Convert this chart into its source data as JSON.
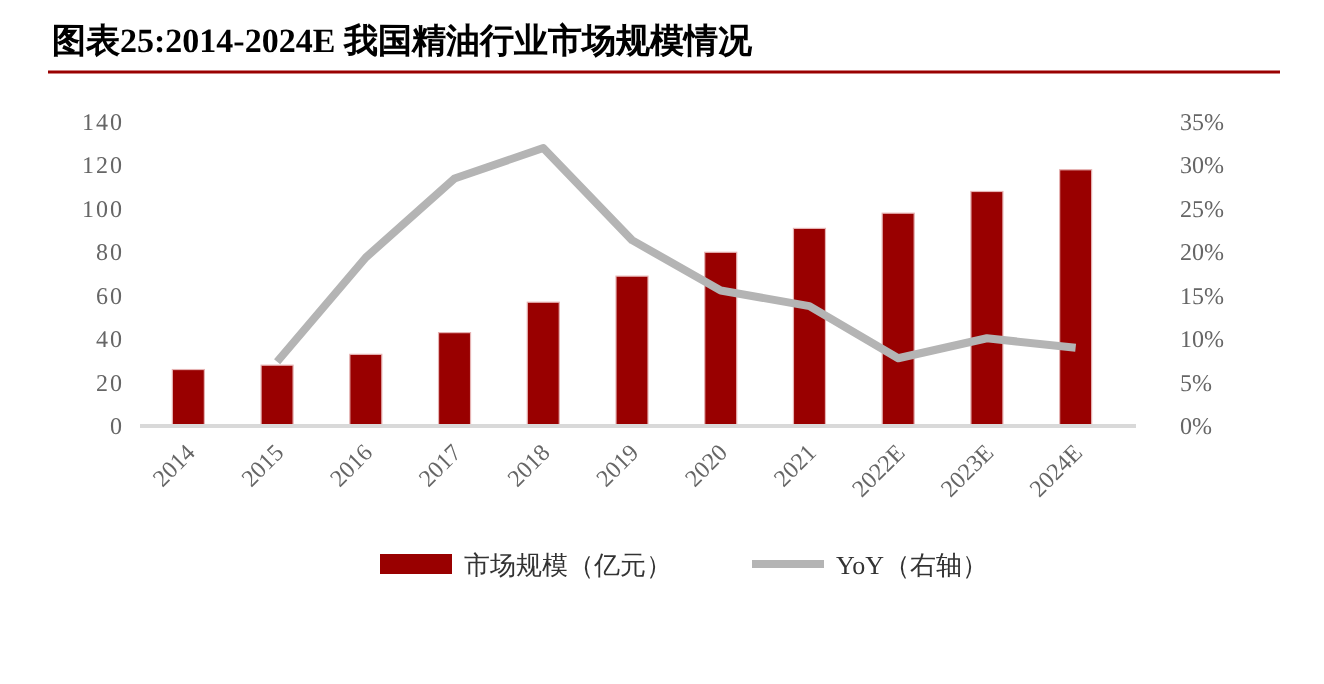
{
  "chart_data": {
    "type": "bar",
    "title": "图表25:2014-2024E 我国精油行业市场规模情况",
    "categories": [
      "2014",
      "2015",
      "2016",
      "2017",
      "2018",
      "2019",
      "2020",
      "2021",
      "2022E",
      "2023E",
      "2024E"
    ],
    "series": [
      {
        "name": "市场规模（亿元）",
        "color": "#990000",
        "values": [
          26,
          28,
          33,
          43,
          57,
          69,
          80,
          91,
          98,
          108,
          118
        ]
      },
      {
        "name": "YoY（右轴）",
        "type": "line",
        "axis": "y2",
        "color": "#b4b4b4",
        "values": [
          null,
          7.4,
          19.4,
          28.5,
          32,
          21.4,
          15.6,
          13.8,
          7.8,
          10.1,
          9
        ]
      }
    ],
    "ylim": [
      0,
      140
    ],
    "yticks": [
      0,
      20,
      40,
      60,
      80,
      100,
      120,
      140
    ],
    "y2lim": [
      0,
      35
    ],
    "y2ticks": [
      {
        "value": 0,
        "label": "0%"
      },
      {
        "value": 5,
        "label": "5%"
      },
      {
        "value": 10,
        "label": "10%"
      },
      {
        "value": 15,
        "label": "15%"
      },
      {
        "value": 20,
        "label": "20%"
      },
      {
        "value": 25,
        "label": "25%"
      },
      {
        "value": 30,
        "label": "30%"
      },
      {
        "value": 35,
        "label": "35%"
      }
    ],
    "grid": false,
    "legend": "bottom",
    "marker": "none",
    "line_style": "solid"
  }
}
